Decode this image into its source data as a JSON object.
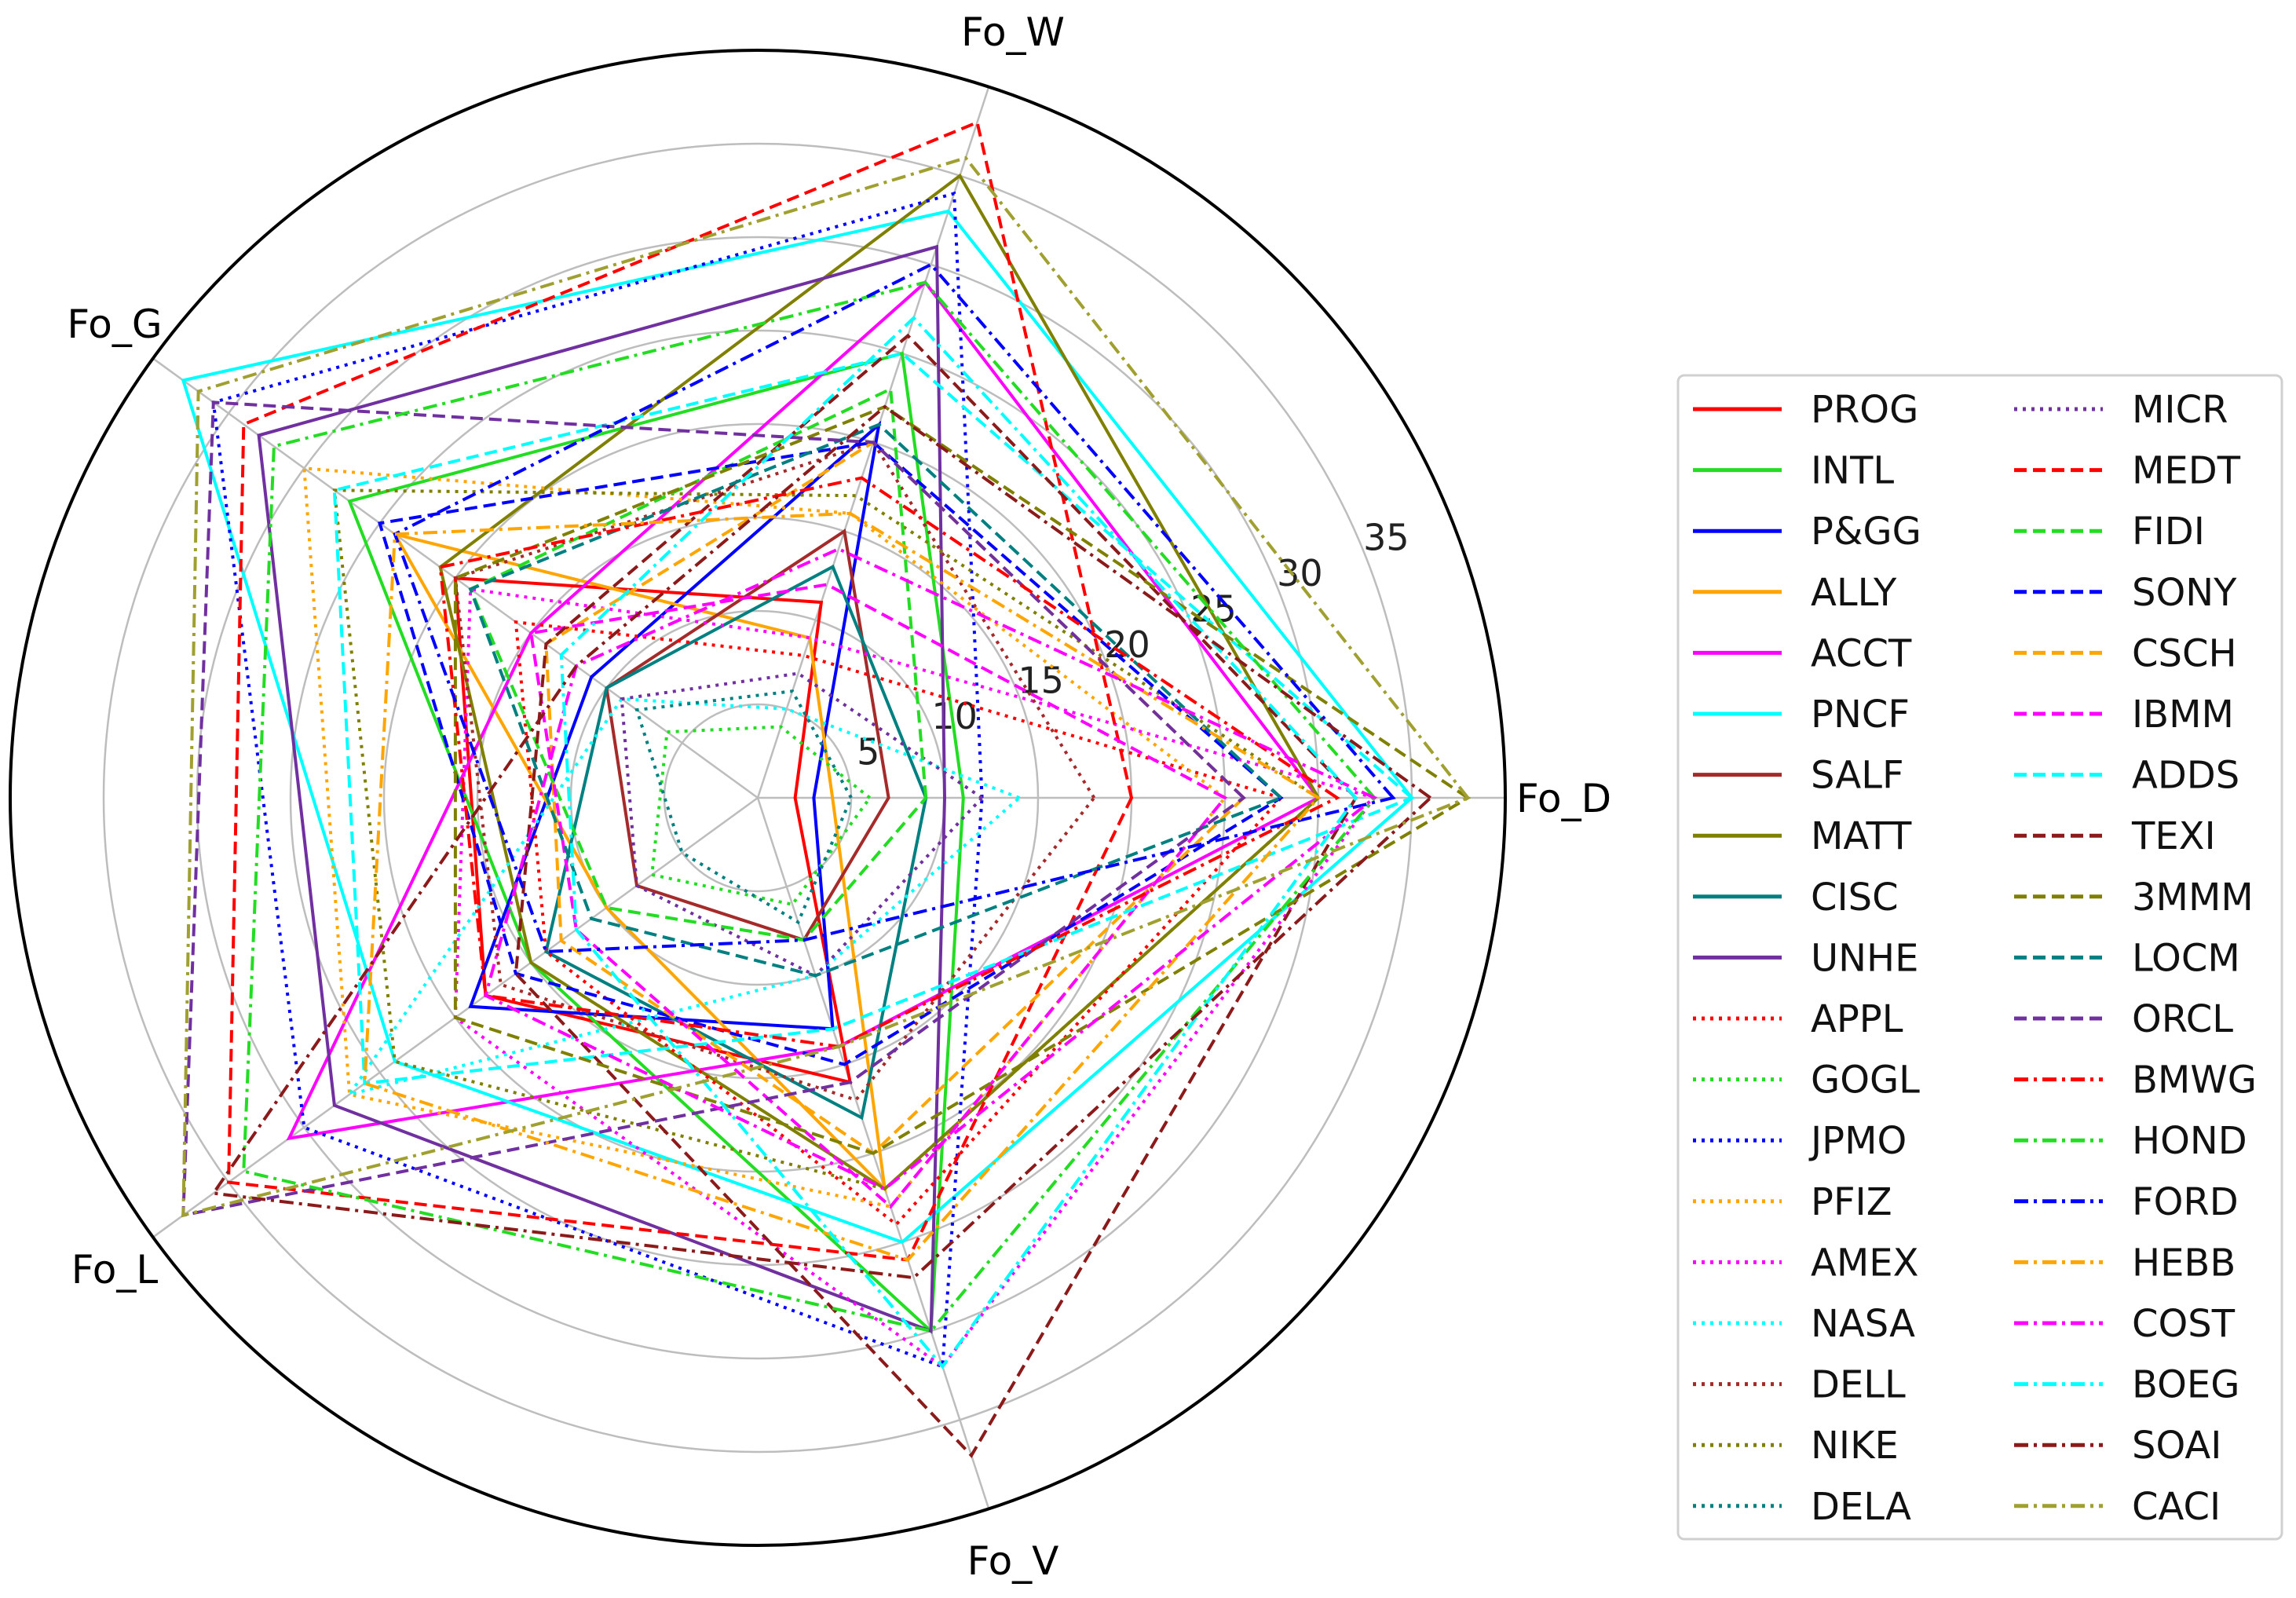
{
  "chart_data": {
    "type": "radar",
    "axes": [
      "Fo_D",
      "Fo_W",
      "Fo_G",
      "Fo_L",
      "Fo_V"
    ],
    "rlim": [
      0,
      40
    ],
    "rticks": [
      5,
      10,
      15,
      20,
      25,
      30,
      35
    ],
    "grid": true,
    "legend_placement": "right",
    "series": [
      {
        "name": "PROG",
        "color": "#ff0000",
        "style": "solid",
        "values": [
          2,
          11,
          20,
          18,
          16
        ]
      },
      {
        "name": "INTL",
        "color": "#22dd22",
        "style": "solid",
        "values": [
          11,
          25,
          27,
          15,
          30
        ]
      },
      {
        "name": "P&GG",
        "color": "#0000ff",
        "style": "solid",
        "values": [
          3,
          21,
          11,
          19,
          13
        ]
      },
      {
        "name": "ALLY",
        "color": "#ffa500",
        "style": "solid",
        "values": [
          4,
          9,
          24,
          10,
          22
        ]
      },
      {
        "name": "ACCT",
        "color": "#ff00ff",
        "style": "solid",
        "values": [
          30,
          29,
          15,
          31,
          14
        ]
      },
      {
        "name": "PNCF",
        "color": "#00ffff",
        "style": "solid",
        "values": [
          35,
          33,
          38,
          24,
          25
        ]
      },
      {
        "name": "SALF",
        "color": "#a52a2a",
        "style": "solid",
        "values": [
          7,
          15,
          10,
          8,
          8
        ]
      },
      {
        "name": "MATT",
        "color": "#808000",
        "style": "solid",
        "values": [
          30,
          35,
          21,
          15,
          22
        ]
      },
      {
        "name": "CISC",
        "color": "#008080",
        "style": "solid",
        "values": [
          9,
          13,
          10,
          14,
          18
        ]
      },
      {
        "name": "UNHE",
        "color": "#7030a0",
        "style": "solid",
        "values": [
          10,
          31,
          33,
          28,
          30
        ]
      },
      {
        "name": "APPL",
        "color": "#ff0000",
        "style": "dotted",
        "values": [
          28,
          8,
          16,
          14,
          24
        ]
      },
      {
        "name": "GOGL",
        "color": "#22dd22",
        "style": "dotted",
        "values": [
          6,
          4,
          6,
          7,
          6
        ]
      },
      {
        "name": "JPMO",
        "color": "#0000ff",
        "style": "dotted",
        "values": [
          12,
          34,
          36,
          30,
          32
        ]
      },
      {
        "name": "PFIZ",
        "color": "#ffa500",
        "style": "dotted",
        "values": [
          25,
          16,
          30,
          27,
          23
        ]
      },
      {
        "name": "AMEX",
        "color": "#ff00ff",
        "style": "dotted",
        "values": [
          33,
          9,
          19,
          20,
          32
        ]
      },
      {
        "name": "NASA",
        "color": "#00ffff",
        "style": "dotted",
        "values": [
          14,
          5,
          9,
          27,
          10
        ]
      },
      {
        "name": "DELL",
        "color": "#a52a2a",
        "style": "dotted",
        "values": [
          18,
          20,
          20,
          17,
          17
        ]
      },
      {
        "name": "NIKE",
        "color": "#808000",
        "style": "dotted",
        "values": [
          30,
          17,
          28,
          24,
          22
        ]
      },
      {
        "name": "DELA",
        "color": "#008080",
        "style": "dotted",
        "values": [
          5,
          6,
          8,
          5,
          7
        ]
      },
      {
        "name": "MICR",
        "color": "#7030a0",
        "style": "dotted",
        "values": [
          12,
          7,
          9,
          8,
          10
        ]
      },
      {
        "name": "MEDT",
        "color": "#ff0000",
        "style": "dashed",
        "values": [
          20,
          38,
          34,
          35,
          26
        ]
      },
      {
        "name": "FIDI",
        "color": "#22dd22",
        "style": "dashed",
        "values": [
          9,
          23,
          19,
          10,
          8
        ]
      },
      {
        "name": "SONY",
        "color": "#0000ff",
        "style": "dashed",
        "values": [
          28,
          20,
          25,
          16,
          15
        ]
      },
      {
        "name": "CSCH",
        "color": "#ffa500",
        "style": "dashed",
        "values": [
          26,
          20,
          14,
          13,
          20
        ]
      },
      {
        "name": "IBMM",
        "color": "#ff00ff",
        "style": "dashed",
        "values": [
          25,
          12,
          15,
          12,
          23
        ]
      },
      {
        "name": "ADDS",
        "color": "#00ffff",
        "style": "dashed",
        "values": [
          35,
          25,
          28,
          26,
          13
        ]
      },
      {
        "name": "TEXI",
        "color": "#8b1a1a",
        "style": "dashed",
        "values": [
          32,
          26,
          14,
          16,
          37
        ]
      },
      {
        "name": "3MMM",
        "color": "#808000",
        "style": "dashed",
        "values": [
          38,
          22,
          20,
          20,
          20
        ]
      },
      {
        "name": "LOCM",
        "color": "#008080",
        "style": "dashed",
        "values": [
          28,
          21,
          19,
          11,
          10
        ]
      },
      {
        "name": "ORCL",
        "color": "#7030a0",
        "style": "dashed",
        "values": [
          26,
          20,
          36,
          38,
          16
        ]
      },
      {
        "name": "BMWG",
        "color": "#ff0000",
        "style": "dashdot",
        "values": [
          31,
          18,
          21,
          18,
          14
        ]
      },
      {
        "name": "HOND",
        "color": "#22dd22",
        "style": "dashdot",
        "values": [
          33,
          29,
          32,
          34,
          30
        ]
      },
      {
        "name": "FORD",
        "color": "#0000ff",
        "style": "dashdot",
        "values": [
          34,
          30,
          24,
          14,
          8
        ]
      },
      {
        "name": "HEBB",
        "color": "#ffa500",
        "style": "dashdot",
        "values": [
          30,
          16,
          24,
          26,
          26
        ]
      },
      {
        "name": "COST",
        "color": "#ff00ff",
        "style": "dashdot",
        "values": [
          33,
          14,
          12,
          18,
          22
        ]
      },
      {
        "name": "BOEG",
        "color": "#00ffff",
        "style": "dashdot",
        "values": [
          32,
          27,
          13,
          12,
          32
        ]
      },
      {
        "name": "SOAI",
        "color": "#8b1a1a",
        "style": "dashdot",
        "values": [
          36,
          22,
          12,
          36,
          27
        ]
      },
      {
        "name": "CACI",
        "color": "#a0a030",
        "style": "dashdot",
        "values": [
          38,
          36,
          37,
          38,
          14
        ]
      }
    ]
  }
}
